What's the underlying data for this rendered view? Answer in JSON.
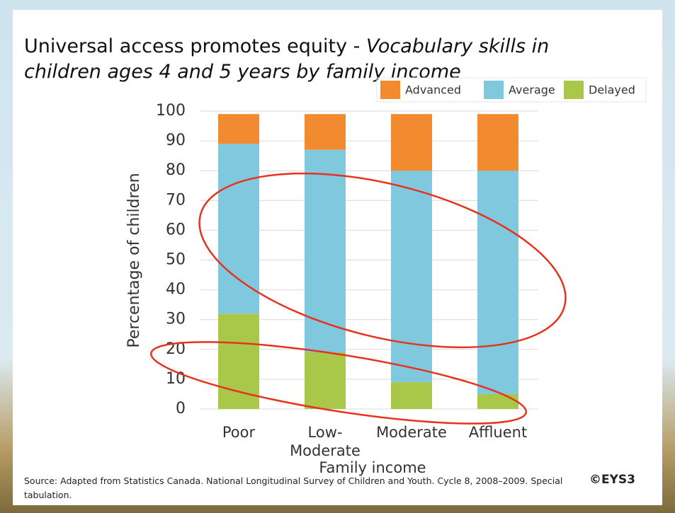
{
  "chart_data": {
    "type": "stacked_bar",
    "title": "Universal access promotes equity - ",
    "subtitle": "Vocabulary skills in children ages 4 and 5 years by family income",
    "y_label": "Percentage of children",
    "x_label": "Family income",
    "categories": [
      "Poor",
      "Low-Moderate",
      "Moderate",
      "Affluent"
    ],
    "series": [
      {
        "name": "Delayed",
        "color": "#a9c84a",
        "values": [
          32,
          19,
          9,
          5
        ]
      },
      {
        "name": "Average",
        "color": "#7fc8dd",
        "values": [
          57,
          68,
          71,
          75
        ]
      },
      {
        "name": "Advanced",
        "color": "#f28a30",
        "values": [
          10,
          12,
          19,
          19
        ]
      }
    ],
    "legend_order": [
      "Advanced",
      "Average",
      "Delayed"
    ],
    "legend": "top-right",
    "ylim": [
      0,
      100
    ],
    "yticks": [
      0,
      10,
      20,
      30,
      40,
      50,
      60,
      70,
      80,
      90,
      100
    ],
    "grid": true
  },
  "footer": {
    "source": "Source: Adapted from Statistics Canada. National Longitudinal Survey of Children and Youth.  Cycle 8, 2008–2009. Special tabulation.",
    "logo": "©EYS3"
  }
}
